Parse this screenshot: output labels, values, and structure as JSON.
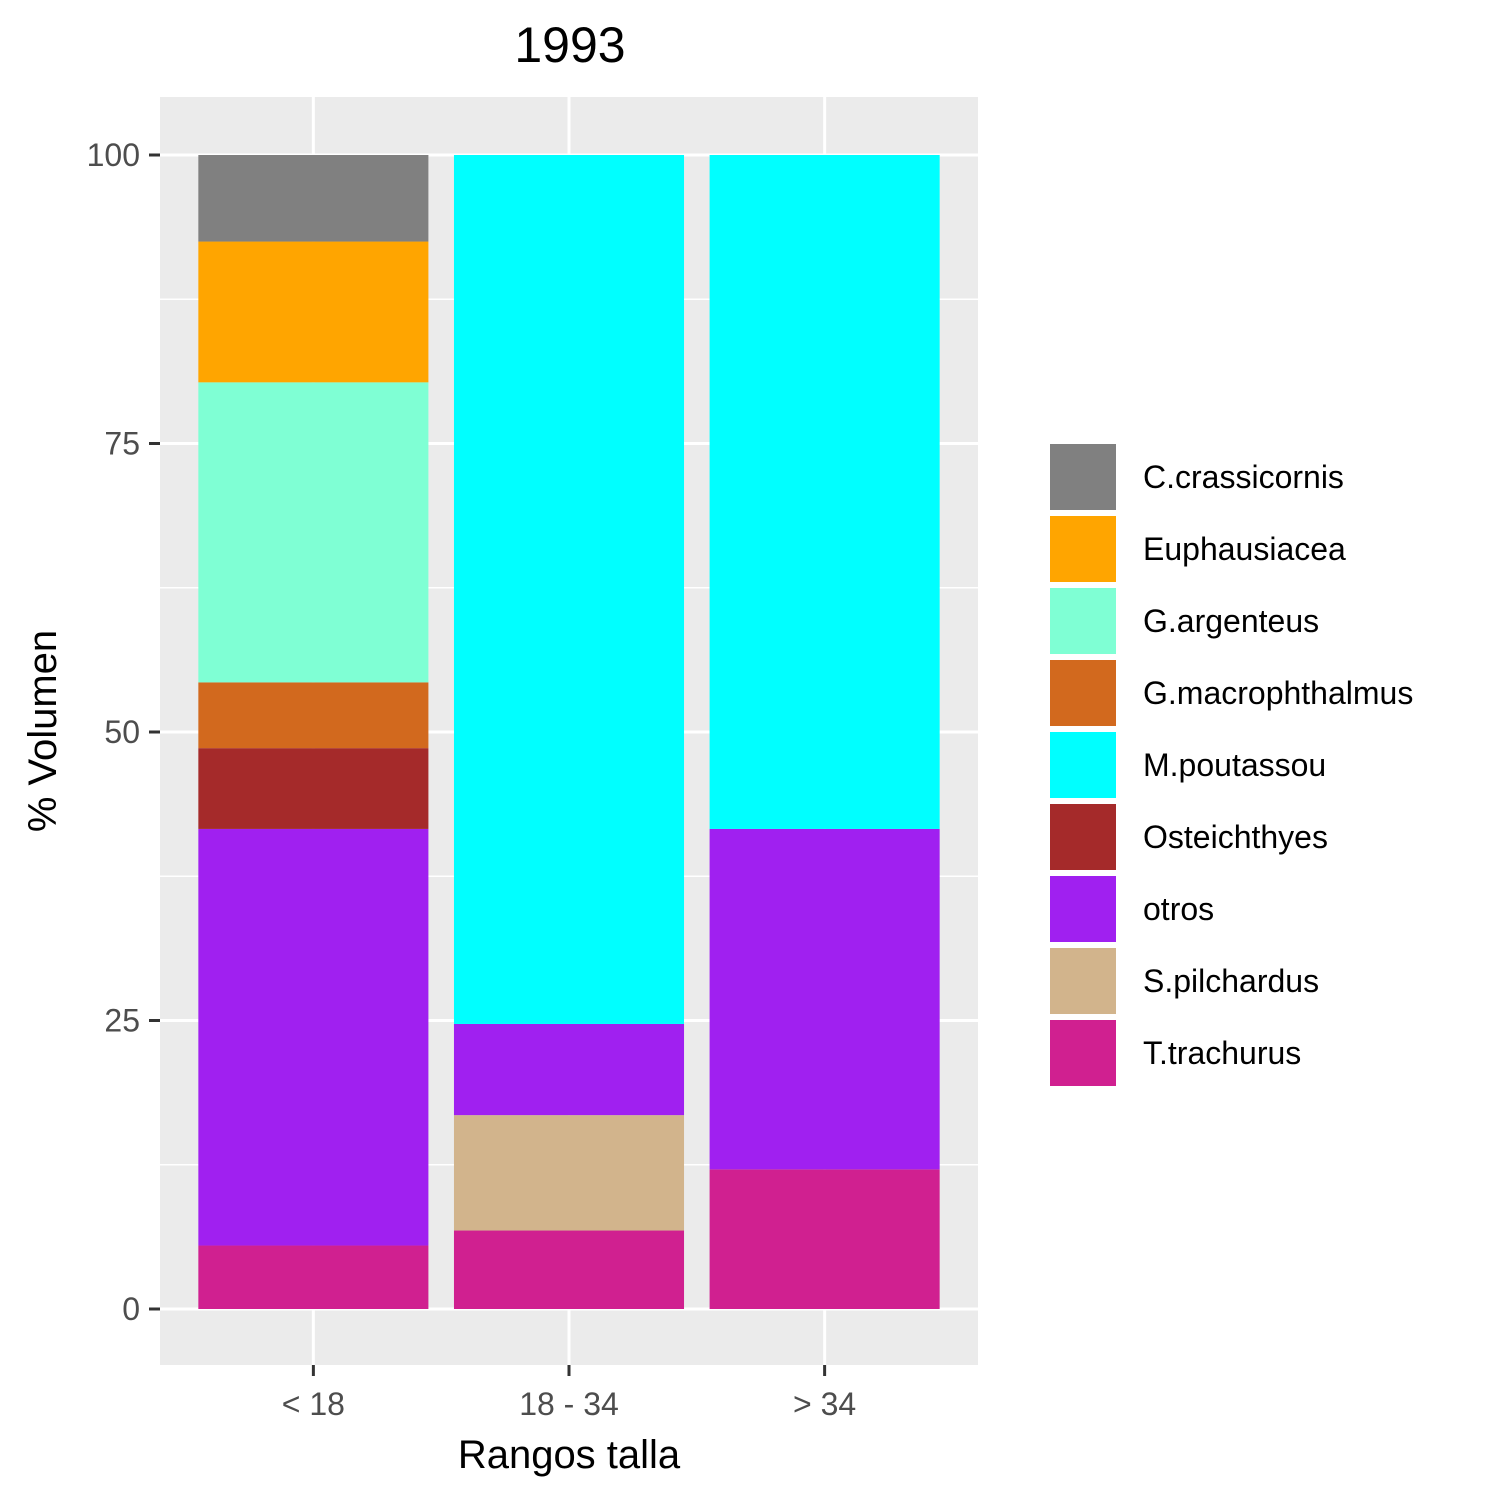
{
  "chart_data": {
    "type": "bar",
    "stacked": true,
    "title": "1993",
    "xlabel": "Rangos talla",
    "ylabel": "% Volumen",
    "categories": [
      "< 18",
      "18 - 34",
      "> 34"
    ],
    "ylim": [
      -5,
      105
    ],
    "yticks": [
      0,
      25,
      50,
      75,
      100
    ],
    "grid": true,
    "legend_position": "right",
    "series": [
      {
        "name": "T.trachurus",
        "color": "#D02090",
        "values": [
          5.5,
          6.8,
          12.1
        ]
      },
      {
        "name": "S.pilchardus",
        "color": "#D2B48C",
        "values": [
          0,
          10.0,
          0
        ]
      },
      {
        "name": "otros",
        "color": "#A020F0",
        "values": [
          36.1,
          7.9,
          29.5
        ]
      },
      {
        "name": "Osteichthyes",
        "color": "#A52A2A",
        "values": [
          7.0,
          0,
          0
        ]
      },
      {
        "name": "M.poutassou",
        "color": "#00FFFF",
        "values": [
          0,
          75.3,
          58.4
        ]
      },
      {
        "name": "G.macrophthalmus",
        "color": "#D2691E",
        "values": [
          5.7,
          0,
          0
        ]
      },
      {
        "name": "G.argenteus",
        "color": "#7FFFD4",
        "values": [
          26.0,
          0,
          0
        ]
      },
      {
        "name": "Euphausiacea",
        "color": "#FFA500",
        "values": [
          12.2,
          0,
          0
        ]
      },
      {
        "name": "C.crassicornis",
        "color": "#808080",
        "values": [
          7.5,
          0,
          0
        ]
      }
    ],
    "legend_order": [
      "C.crassicornis",
      "Euphausiacea",
      "G.argenteus",
      "G.macrophthalmus",
      "M.poutassou",
      "Osteichthyes",
      "otros",
      "S.pilchardus",
      "T.trachurus"
    ]
  },
  "colors": {
    "panel_background": "#EBEBEB",
    "grid": "#FFFFFF",
    "tick": "#333333"
  }
}
